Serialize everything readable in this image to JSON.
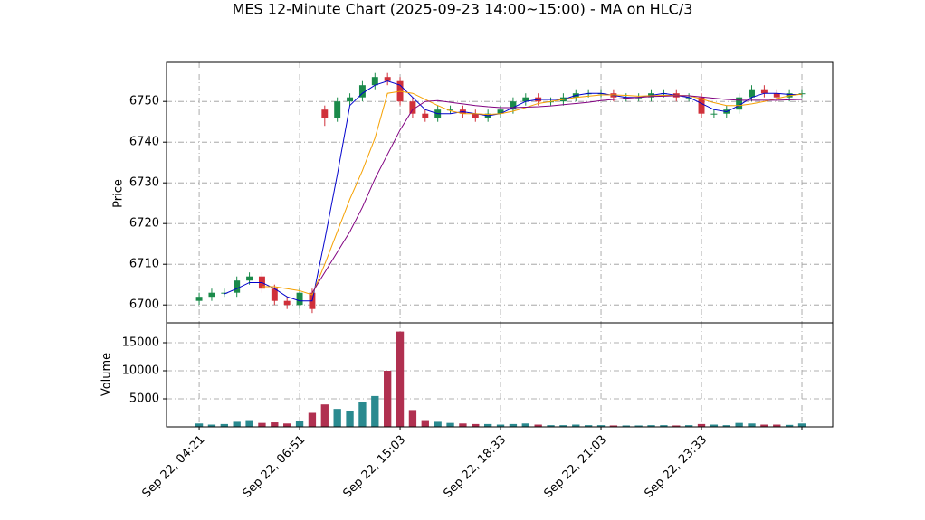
{
  "chart_data": [
    {
      "type": "candlestick",
      "title": "MES 12-Minute Chart (2025-09-23 14:00~15:00) - MA on HLC/3",
      "ylabel": "Price",
      "x": [
        0,
        1,
        2,
        3,
        4,
        5,
        6,
        7,
        8,
        9,
        10,
        11,
        12,
        13,
        14,
        15,
        16,
        17,
        18,
        19,
        20,
        21,
        22,
        23,
        24,
        25,
        26,
        27,
        28,
        29,
        30,
        31,
        32,
        33,
        34,
        35,
        36,
        37,
        38,
        39,
        40,
        41,
        42,
        43,
        44,
        45,
        46,
        47,
        48
      ],
      "open": [
        6701,
        6702,
        6703,
        6703,
        6706,
        6707,
        6704,
        6701,
        6700,
        6703,
        6748,
        6746,
        6750,
        6751,
        6754,
        6756,
        6755,
        6750,
        6747,
        6746,
        6748,
        6748,
        6747,
        6746,
        6747,
        6748,
        6750,
        6751,
        6750,
        6750,
        6751,
        6752,
        6752,
        6752,
        6751,
        6751,
        6751,
        6752,
        6752,
        6751,
        6751,
        6747,
        6747,
        6748,
        6751,
        6753,
        6752,
        6751,
        6752
      ],
      "high": [
        6703,
        6704,
        6704,
        6707,
        6708,
        6708,
        6705,
        6702,
        6704,
        6704,
        6749,
        6751,
        6752,
        6755,
        6757,
        6757,
        6756,
        6751,
        6748,
        6749,
        6749,
        6749,
        6748,
        6748,
        6749,
        6751,
        6752,
        6752,
        6751,
        6752,
        6753,
        6753,
        6753,
        6753,
        6752,
        6752,
        6753,
        6753,
        6753,
        6752,
        6752,
        6748,
        6749,
        6752,
        6754,
        6754,
        6753,
        6753,
        6753
      ],
      "low": [
        6700,
        6701,
        6702,
        6702,
        6705,
        6703,
        6700,
        6699,
        6699,
        6698,
        6744,
        6745,
        6749,
        6750,
        6753,
        6754,
        6749,
        6746,
        6745,
        6745,
        6747,
        6746,
        6745,
        6745,
        6746,
        6747,
        6749,
        6749,
        6749,
        6749,
        6750,
        6751,
        6751,
        6750,
        6750,
        6750,
        6750,
        6751,
        6750,
        6750,
        6746,
        6746,
        6746,
        6747,
        6750,
        6751,
        6750,
        6750,
        6751
      ],
      "close": [
        6702,
        6703,
        6703,
        6706,
        6707,
        6704,
        6701,
        6700,
        6703,
        6699,
        6746,
        6750,
        6751,
        6754,
        6756,
        6755,
        6750,
        6747,
        6746,
        6748,
        6748,
        6747,
        6746,
        6747,
        6748,
        6750,
        6751,
        6750,
        6750,
        6751,
        6752,
        6752,
        6752,
        6751,
        6751,
        6751,
        6752,
        6752,
        6751,
        6751,
        6747,
        6747,
        6748,
        6751,
        6753,
        6752,
        6751,
        6752,
        6752
      ],
      "up_color": "#1a8a4a",
      "down_color": "#d0303a",
      "series": [
        {
          "color": "#0000cc",
          "values": [
            null,
            null,
            6702.7,
            6704,
            6705.5,
            6705.5,
            6704,
            6702,
            6701,
            6701,
            6716,
            6732,
            6749,
            6752,
            6754,
            6755,
            6754,
            6751,
            6748,
            6747,
            6747,
            6747.5,
            6747,
            6746.5,
            6747,
            6748.5,
            6750,
            6750.5,
            6750.5,
            6750.5,
            6751.5,
            6752,
            6752,
            6751.5,
            6751,
            6751,
            6751.5,
            6752,
            6751.5,
            6751,
            6749.5,
            6748,
            6747.5,
            6749,
            6751,
            6752,
            6752,
            6751.7,
            6751.7
          ]
        },
        {
          "color": "#f5a000",
          "values": [
            null,
            null,
            null,
            null,
            null,
            6704.5,
            6704.5,
            6704,
            6703.5,
            6702.5,
            6710,
            6718,
            6726,
            6733,
            6741,
            6752,
            6752.5,
            6752,
            6750.5,
            6749,
            6747.7,
            6747,
            6747,
            6746.8,
            6747,
            6747.6,
            6748.5,
            6749.5,
            6750,
            6750.5,
            6751,
            6751.3,
            6751.6,
            6751.6,
            6751.5,
            6751.3,
            6751.4,
            6751.5,
            6751.5,
            6751.4,
            6750.6,
            6749.7,
            6749,
            6749,
            6749.4,
            6750,
            6750.7,
            6751.4,
            6751.8
          ]
        },
        {
          "color": "#800080",
          "values": [
            null,
            null,
            null,
            null,
            null,
            null,
            null,
            null,
            null,
            6703,
            6708,
            6713,
            6718,
            6724,
            6731,
            6737,
            6743,
            6748,
            6750,
            6750.2,
            6749.8,
            6749.4,
            6749,
            6748.7,
            6748.5,
            6748.5,
            6748.6,
            6748.7,
            6748.9,
            6749.2,
            6749.5,
            6749.8,
            6750.2,
            6750.5,
            6750.8,
            6751,
            6751.2,
            6751.3,
            6751.4,
            6751.4,
            6751.1,
            6750.8,
            6750.5,
            6750.3,
            6750.3,
            6750.3,
            6750.3,
            6750.4,
            6750.5
          ]
        }
      ],
      "xlim": [
        -2.6,
        50.45
      ],
      "ylim": [
        6695.6,
        6759.6
      ],
      "yticks": [
        6700,
        6710,
        6720,
        6730,
        6740,
        6750
      ],
      "grid": true
    },
    {
      "type": "bar",
      "ylabel": "Volume",
      "values": [
        600,
        400,
        500,
        900,
        1200,
        700,
        800,
        600,
        1000,
        2500,
        4000,
        3200,
        2800,
        4500,
        5500,
        10000,
        17000,
        3000,
        1200,
        900,
        700,
        600,
        500,
        500,
        400,
        500,
        600,
        400,
        300,
        300,
        400,
        300,
        300,
        250,
        250,
        250,
        300,
        300,
        250,
        300,
        500,
        400,
        300,
        700,
        600,
        400,
        400,
        350,
        600
      ],
      "up_color": "#2a8a8f",
      "down_color": "#b03050",
      "xlim": [
        -2.6,
        50.45
      ],
      "ylim": [
        0,
        18550
      ],
      "yticks": [
        5000,
        10000,
        15000
      ],
      "xticks": [
        {
          "value": 0,
          "label": "Sep 22, 04:21"
        },
        {
          "value": 8,
          "label": "Sep 22, 06:51"
        },
        {
          "value": 16,
          "label": "Sep 22, 15:03"
        },
        {
          "value": 24,
          "label": "Sep 22, 18:33"
        },
        {
          "value": 32,
          "label": "Sep 22, 21:03"
        },
        {
          "value": 40,
          "label": "Sep 22, 23:33"
        },
        {
          "value": 48,
          "label": null
        }
      ],
      "grid": true
    }
  ]
}
